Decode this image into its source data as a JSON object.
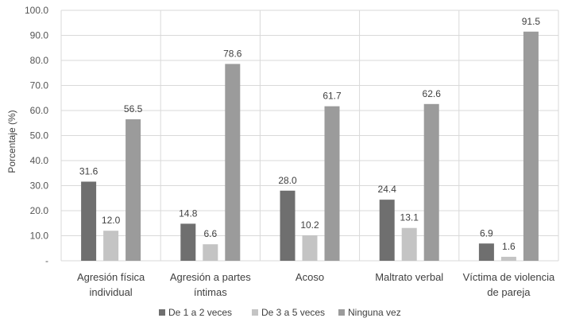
{
  "chart_data": {
    "type": "bar",
    "title": "",
    "xlabel": "",
    "ylabel": "Porcentaje (%)",
    "ylim": [
      0,
      100
    ],
    "y_ticks": [
      "-",
      "10.0",
      "20.0",
      "30.0",
      "40.0",
      "50.0",
      "60.0",
      "70.0",
      "80.0",
      "90.0",
      "100.0"
    ],
    "grid": true,
    "legend_position": "bottom",
    "categories": [
      [
        "Agresión física",
        "individual"
      ],
      [
        "Agresión a partes",
        "íntimas"
      ],
      [
        "Acoso"
      ],
      [
        "Maltrato verbal"
      ],
      [
        "Víctima de violencia",
        "de pareja"
      ]
    ],
    "series": [
      {
        "name": "De 1 a 2 veces",
        "color": "#6f6f6f",
        "values": [
          31.6,
          14.8,
          28.0,
          24.4,
          6.9
        ],
        "labels": [
          "31.6",
          "14.8",
          "28.0",
          "24.4",
          "6.9"
        ]
      },
      {
        "name": "De 3 a 5 veces",
        "color": "#c4c4c4",
        "values": [
          12.0,
          6.6,
          10.2,
          13.1,
          1.6
        ],
        "labels": [
          "12.0",
          "6.6",
          "10.2",
          "13.1",
          "1.6"
        ]
      },
      {
        "name": "Ninguna vez",
        "color": "#9b9b9b",
        "values": [
          56.5,
          78.6,
          61.7,
          62.6,
          91.5
        ],
        "labels": [
          "56.5",
          "78.6",
          "61.7",
          "62.6",
          "91.5"
        ]
      }
    ]
  }
}
